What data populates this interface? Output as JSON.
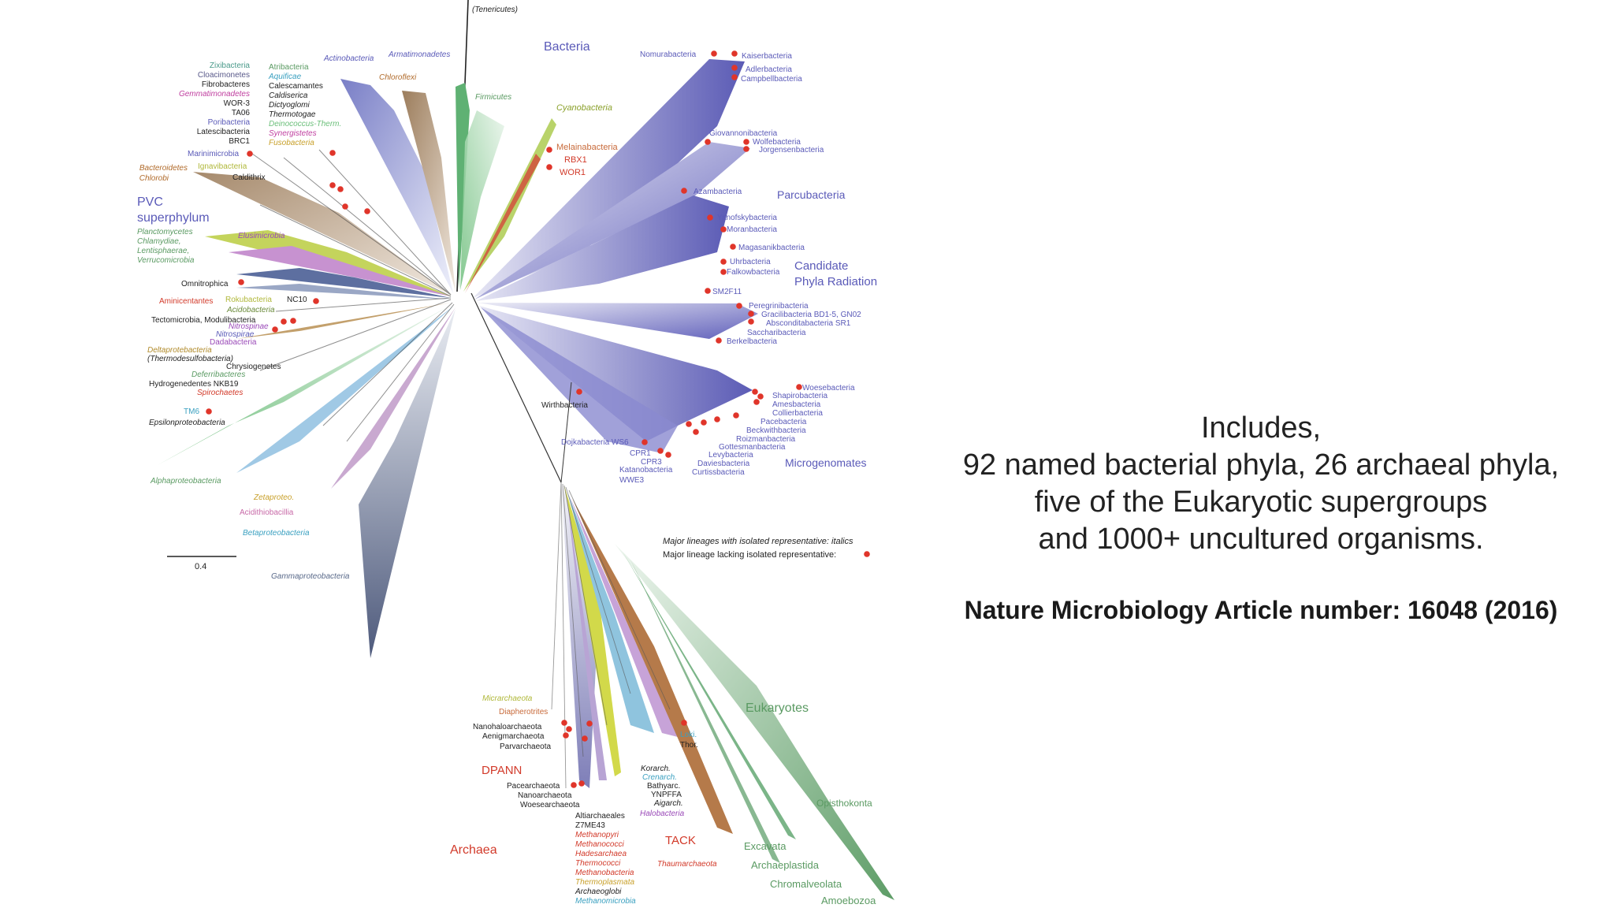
{
  "colors": {
    "bacteria_cpr": "#5a5ab8",
    "archaea": "#d23a2a",
    "eukaryotes": "#5a9a62",
    "red_dot": "#e0352a",
    "proteo_green": "#6bbf7a",
    "slate": "#5a6a8a"
  },
  "domains": {
    "bacteria": "Bacteria",
    "archaea": "Archaea",
    "eukaryotes": "Eukaryotes"
  },
  "groups": {
    "pvc_1": "PVC",
    "pvc_2": "superphylum",
    "cpr_1": "Candidate",
    "cpr_2": "Phyla Radiation",
    "parcubacteria": "Parcubacteria",
    "microgenomates": "Microgenomates",
    "dpann": "DPANN",
    "tack": "TACK"
  },
  "scale_label": "0.4",
  "legend": {
    "italics": "Major lineages with isolated representative: italics",
    "lacking": "Major lineage lacking isolated representative:"
  },
  "labels": {
    "tenericutes": "(Tenericutes)",
    "actinobacteria": "Actinobacteria",
    "armatimonadetes": "Armatimonadetes",
    "chloroflexi": "Chloroflexi",
    "firmicutes": "Firmicutes",
    "cyanobacteria": "Cyanobacteria",
    "melainabacteria": "Melainabacteria",
    "rbx1": "RBX1",
    "wor1": "WOR1",
    "zixibacteria": "Zixibacteria",
    "cloacimonetes": "Cloacimonetes",
    "fibrobacteres": "Fibrobacteres",
    "gemmatimonadetes": "Gemmatimonadetes",
    "wor3": "WOR-3",
    "ta06": "TA06",
    "poribacteria": "Poribacteria",
    "latescibacteria": "Latescibacteria",
    "brc1": "BRC1",
    "atribacteria": "Atribacteria",
    "aquificae": "Aquificae",
    "calescamantes": "Calescamantes",
    "caldiserica": "Caldiserica",
    "dictyoglomi": "Dictyoglomi",
    "thermotogae": "Thermotogae",
    "deinococcus": "Deinococcus-Therm.",
    "synergistetes": "Synergistetes",
    "fusobacteria": "Fusobacteria",
    "marinimicrobia": "Marinimicrobia",
    "bacteroidetes": "Bacteroidetes",
    "chlorobi": "Chlorobi",
    "ignavibacteria": "Ignavibacteria",
    "caldithrix": "Caldithrix",
    "planctomycetes": "Planctomycetes",
    "chlamydiae": "Chlamydiae,",
    "lentisphaerae": "Lentisphaerae,",
    "verrucomicrobia": "Verrucomicrobia",
    "elusimicrobia": "Elusimicrobia",
    "omnitrophica": "Omnitrophica",
    "aminicentantes": "Aminicentantes",
    "rokubacteria": "Rokubacteria",
    "nc10": "NC10",
    "acidobacteria": "Acidobacteria",
    "nitrospinae": "Nitrospinae",
    "tectomicrobia": "Tectomicrobia, Modulibacteria",
    "nitrospirae": "Nitrospirae",
    "dadabacteria": "Dadabacteria",
    "deltaproteobacteria": "Deltaprotebacteria",
    "thermodesulfo": "(Thermodesulfobacteria)",
    "chrysiogenetes": "Chrysiogenetes",
    "deferribacteres": "Deferribacteres",
    "hydrogenedentes": "Hydrogenedentes NKB19",
    "spirochaetes": "Spirochaetes",
    "tm6": "TM6",
    "epsilonproteobacteria": "Epsilonproteobacteria",
    "alphaproteobacteria": "Alphaproteobacteria",
    "zetaproteo": "Zetaproteo.",
    "acidithiobacillia": "Acidithiobacillia",
    "betaproteobacteria": "Betaproteobacteria",
    "gammaproteobacteria": "Gammaproteobacteria",
    "nomurabacteria": "Nomurabacteria",
    "kaiserbacteria": "Kaiserbacteria",
    "adlerbacteria": "Adlerbacteria",
    "campbellbacteria": "Campbellbacteria",
    "giovannonibacteria": "Giovannonibacteria",
    "wolfebacteria": "Wolfebacteria",
    "jorgensenbacteria": "Jorgensenbacteria",
    "azambacteria": "Azambacteria",
    "yanofskybacteria": "Yanofskybacteria",
    "moranbacteria": "Moranbacteria",
    "magasanikbacteria": "Magasanikbacteria",
    "uhrbacteria": "Uhrbacteria",
    "falkowbacteria": "Falkowbacteria",
    "sm2f11": "SM2F11",
    "peregrinibacteria": "Peregrinibacteria",
    "gracilibacteria": "Gracilibacteria BD1-5, GN02",
    "absconditabacteria": "Absconditabacteria SR1",
    "saccharibacteria": "Saccharibacteria",
    "berkelbacteria": "Berkelbacteria",
    "woesebacteria": "Woesebacteria",
    "shapirobacteria": "Shapirobacteria",
    "amesbacteria": "Amesbacteria",
    "collierbacteria": "Collierbacteria",
    "pacebacteria": "Pacebacteria",
    "beckwithbacteria": "Beckwithbacteria",
    "roizmanbacteria": "Roizmanbacteria",
    "gottesmanbacteria": "Gottesmanbacteria",
    "levybacteria": "Levybacteria",
    "daviesbacteria": "Daviesbacteria",
    "curtissbacteria": "Curtissbacteria",
    "wirthbacteria": "Wirthbacteria",
    "dojkabacteria": "Dojkabacteria WS6",
    "cpr1": "CPR1",
    "cpr3": "CPR3",
    "katanobacteria": "Katanobacteria",
    "wwe3": "WWE3",
    "micrarchaeota": "Micrarchaeota",
    "diapherotrites": "Diapherotrites",
    "nanohaloarchaeota": "Nanohaloarchaeota",
    "aenigmarchaeota": "Aenigmarchaeota",
    "parvarchaeota": "Parvarchaeota",
    "pacearchaeota": "Pacearchaeota",
    "nanoarchaeota": "Nanoarchaeota",
    "woesearchaeota": "Woesearchaeota",
    "altiarchaeales": "Altiarchaeales",
    "z7me43": "Z7ME43",
    "methanopyri": "Methanopyri",
    "methanococci": "Methanococci",
    "hadesarchaea": "Hadesarchaea",
    "thermococci": "Thermococci",
    "methanobacteria": "Methanobacteria",
    "thermoplasmata": "Thermoplasmata",
    "archaeoglobi": "Archaeoglobi",
    "methanomicrobia": "Methanomicrobia",
    "halobacteria": "Halobacteria",
    "korarch": "Korarch.",
    "crenarch": "Crenarch.",
    "bathyarc": "Bathyarc.",
    "ynpffa": "YNPFFA",
    "aigarch": "Aigarch.",
    "thaumarchaeota": "Thaumarchaeota",
    "loki": "Loki.",
    "thor": "Thor.",
    "opisthokonta": "Opisthokonta",
    "excavata": "Excavata",
    "archaeplastida": "Archaeplastida",
    "chromalveolata": "Chromalveolata",
    "amoebozoa": "Amoebozoa"
  },
  "caption": {
    "line1": "Includes,",
    "line2": "92 named bacterial phyla, 26 archaeal phyla,",
    "line3": "five of the Eukaryotic supergroups",
    "line4": "and 1000+ uncultured organisms.",
    "citation": "Nature Microbiology Article number: 16048 (2016)"
  }
}
